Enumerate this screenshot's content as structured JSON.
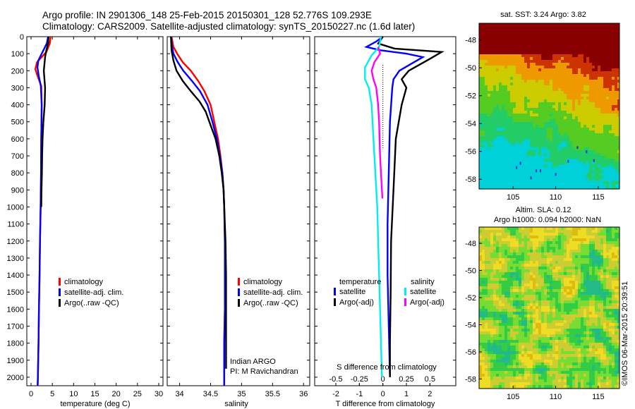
{
  "header": {
    "line1": "Argo profile: IN 2901306_148 25-Feb-2015 20150301_128 52.776S 109.293E",
    "line2": "Climatology: CARS2009. Satellite-adjusted climatology: synTS_20150227.nc (1.6d later)"
  },
  "chart_data": [
    {
      "type": "line",
      "name": "temperature-profile",
      "xlabel": "temperature (deg C)",
      "xlim": [
        -1,
        31
      ],
      "ylim": [
        2050,
        0
      ],
      "xticks": [
        "0",
        "5",
        "10",
        "15",
        "20",
        "25",
        "30"
      ],
      "xtick_values": [
        0,
        5,
        10,
        15,
        20,
        25,
        30
      ],
      "ytick_values": [
        0,
        100,
        200,
        300,
        400,
        500,
        600,
        700,
        800,
        900,
        1000,
        1100,
        1200,
        1300,
        1400,
        1500,
        1600,
        1700,
        1800,
        1900,
        2000
      ],
      "legend": [
        "climatology",
        "satellite-adj. clim.",
        "Argo(..raw -QC)"
      ],
      "series": [
        {
          "name": "climatology",
          "color": "#ff0000",
          "points": [
            [
              4.6,
              0
            ],
            [
              4.4,
              40
            ],
            [
              3.6,
              90
            ],
            [
              1.4,
              150
            ],
            [
              1.0,
              190
            ],
            [
              1.5,
              230
            ],
            [
              2.4,
              290
            ],
            [
              2.5,
              400
            ],
            [
              2.4,
              600
            ],
            [
              2.35,
              800
            ],
            [
              2.25,
              1000
            ],
            [
              2.1,
              1200
            ],
            [
              2.0,
              1400
            ],
            [
              1.85,
              1600
            ],
            [
              1.75,
              1800
            ],
            [
              1.6,
              2000
            ],
            [
              1.55,
              2050
            ]
          ]
        },
        {
          "name": "satellite-adj. clim.",
          "color": "#0000ff",
          "points": [
            [
              4.0,
              0
            ],
            [
              3.7,
              40
            ],
            [
              2.7,
              90
            ],
            [
              1.7,
              140
            ],
            [
              1.5,
              180
            ],
            [
              1.8,
              230
            ],
            [
              2.3,
              290
            ],
            [
              2.5,
              400
            ],
            [
              2.4,
              600
            ],
            [
              2.35,
              800
            ],
            [
              2.25,
              1000
            ],
            [
              2.1,
              1200
            ],
            [
              2.0,
              1400
            ],
            [
              1.85,
              1600
            ],
            [
              1.75,
              1800
            ],
            [
              1.6,
              2000
            ],
            [
              1.55,
              2050
            ]
          ]
        },
        {
          "name": "Argo(..raw -QC)",
          "color": "#000000",
          "points": [
            [
              4.1,
              0
            ],
            [
              4.0,
              40
            ],
            [
              3.6,
              80
            ],
            [
              3.3,
              120
            ],
            [
              3.0,
              200
            ],
            [
              3.3,
              300
            ],
            [
              3.2,
              400
            ],
            [
              2.9,
              500
            ],
            [
              2.7,
              600
            ],
            [
              2.6,
              700
            ],
            [
              2.55,
              800
            ],
            [
              2.45,
              900
            ],
            [
              2.4,
              1000
            ]
          ]
        }
      ]
    },
    {
      "type": "line",
      "name": "salinity-profile",
      "xlabel": "salinity",
      "xlim": [
        33.8,
        36.1
      ],
      "ylim": [
        2050,
        0
      ],
      "xticks": [
        "34",
        "34.5",
        "35",
        "35.5",
        "36"
      ],
      "xtick_values": [
        34,
        34.5,
        35,
        35.5,
        36
      ],
      "legend": [
        "climatology",
        "satellite-adj. clim.",
        "Argo(..raw -QC)"
      ],
      "annotation": [
        "Indian ARGO",
        "PI: M Ravichandran"
      ],
      "series": [
        {
          "name": "climatology",
          "color": "#ff0000",
          "points": [
            [
              33.87,
              0
            ],
            [
              33.9,
              60
            ],
            [
              33.96,
              100
            ],
            [
              34.05,
              150
            ],
            [
              34.18,
              200
            ],
            [
              34.3,
              260
            ],
            [
              34.4,
              320
            ],
            [
              34.5,
              400
            ],
            [
              34.56,
              500
            ],
            [
              34.62,
              600
            ],
            [
              34.66,
              700
            ],
            [
              34.69,
              800
            ],
            [
              34.71,
              900
            ],
            [
              34.72,
              1000
            ],
            [
              34.73,
              1200
            ],
            [
              34.73,
              1400
            ],
            [
              34.73,
              1600
            ],
            [
              34.72,
              1800
            ],
            [
              34.72,
              2050
            ]
          ]
        },
        {
          "name": "satellite-adj. clim.",
          "color": "#0000ff",
          "points": [
            [
              33.86,
              0
            ],
            [
              33.88,
              60
            ],
            [
              33.9,
              100
            ],
            [
              33.97,
              150
            ],
            [
              34.06,
              200
            ],
            [
              34.2,
              260
            ],
            [
              34.33,
              320
            ],
            [
              34.45,
              400
            ],
            [
              34.53,
              500
            ],
            [
              34.6,
              600
            ],
            [
              34.65,
              700
            ],
            [
              34.69,
              800
            ],
            [
              34.71,
              900
            ],
            [
              34.72,
              1000
            ],
            [
              34.73,
              1200
            ],
            [
              34.73,
              1400
            ],
            [
              34.73,
              1600
            ],
            [
              34.72,
              1800
            ],
            [
              34.72,
              2050
            ]
          ]
        },
        {
          "name": "Argo(..raw -QC)",
          "color": "#000000",
          "points": [
            [
              33.86,
              0
            ],
            [
              33.87,
              80
            ],
            [
              33.9,
              140
            ],
            [
              33.95,
              200
            ],
            [
              34.05,
              260
            ],
            [
              34.18,
              320
            ],
            [
              34.32,
              380
            ],
            [
              34.42,
              440
            ],
            [
              34.5,
              520
            ],
            [
              34.58,
              600
            ],
            [
              34.64,
              700
            ],
            [
              34.68,
              800
            ],
            [
              34.71,
              900
            ],
            [
              34.72,
              1000
            ],
            [
              34.74,
              1200
            ],
            [
              34.75,
              1400
            ],
            [
              34.75,
              1600
            ],
            [
              34.75,
              1800
            ],
            [
              34.75,
              1950
            ]
          ]
        }
      ]
    },
    {
      "type": "line",
      "name": "difference-profile",
      "xlabel": "T difference from climatology",
      "xlabel_top": "S difference from climatology",
      "xlim": [
        -2.9,
        3.1
      ],
      "ylim": [
        2050,
        0
      ],
      "xticks": [
        "-2",
        "-1",
        "0",
        "1",
        "2"
      ],
      "xtick_values": [
        -2,
        -1,
        0,
        1,
        2
      ],
      "xticks_top": [
        "-0.5",
        "-0.25",
        "0",
        "0.25",
        "0.5"
      ],
      "xtick_top_values": [
        -0.5,
        -0.25,
        0,
        0.25,
        0.5
      ],
      "legend_groups": {
        "temperature": [
          "satellite",
          "Argo(-adj)"
        ],
        "salinity": [
          "satellite",
          "Argo(-adj)"
        ]
      },
      "series": [
        {
          "name": "temperature satellite",
          "color": "#0000ff",
          "points": [
            [
              0.0,
              0
            ],
            [
              -0.3,
              30
            ],
            [
              -0.7,
              60
            ],
            [
              -0.1,
              80
            ],
            [
              1.0,
              100
            ],
            [
              1.7,
              120
            ],
            [
              1.2,
              160
            ],
            [
              0.7,
              200
            ],
            [
              0.45,
              250
            ],
            [
              0.4,
              300
            ],
            [
              0.3,
              500
            ],
            [
              0.25,
              800
            ],
            [
              0.2,
              1100
            ],
            [
              0.2,
              1400
            ],
            [
              0.25,
              1700
            ],
            [
              0.3,
              2000
            ]
          ]
        },
        {
          "name": "temperature Argo(-adj)",
          "color": "#000000",
          "points": [
            [
              0.0,
              0
            ],
            [
              -0.2,
              40
            ],
            [
              0.5,
              70
            ],
            [
              2.5,
              90
            ],
            [
              2.0,
              130
            ],
            [
              1.1,
              200
            ],
            [
              0.8,
              250
            ],
            [
              1.0,
              300
            ],
            [
              0.8,
              400
            ],
            [
              0.55,
              600
            ],
            [
              0.45,
              900
            ],
            [
              0.35,
              1200
            ],
            [
              0.33,
              1500
            ],
            [
              0.3,
              1800
            ],
            [
              0.3,
              2000
            ]
          ]
        },
        {
          "name": "salinity satellite",
          "color": "#00eeee",
          "points": [
            [
              -0.02,
              0
            ],
            [
              -0.04,
              60
            ],
            [
              -0.12,
              110
            ],
            [
              -0.19,
              180
            ],
            [
              -0.19,
              250
            ],
            [
              -0.15,
              300
            ],
            [
              -0.12,
              400
            ],
            [
              -0.1,
              600
            ],
            [
              -0.08,
              800
            ],
            [
              -0.06,
              1000
            ],
            [
              -0.05,
              1200
            ],
            [
              -0.04,
              1400
            ],
            [
              -0.03,
              1600
            ],
            [
              -0.02,
              1800
            ],
            [
              -0.01,
              2000
            ]
          ]
        },
        {
          "name": "salinity Argo(-adj)",
          "color": "#ff00ff",
          "points": [
            [
              -0.05,
              60
            ],
            [
              -0.03,
              100
            ],
            [
              -0.09,
              150
            ],
            [
              -0.12,
              200
            ],
            [
              -0.1,
              250
            ],
            [
              -0.07,
              300
            ],
            [
              -0.05,
              400
            ],
            [
              -0.04,
              500
            ],
            [
              -0.035,
              600
            ],
            [
              -0.03,
              700
            ],
            [
              -0.02,
              800
            ],
            [
              -0.01,
              900
            ],
            [
              -0.005,
              950
            ]
          ]
        }
      ]
    },
    {
      "type": "heatmap",
      "name": "sst-map",
      "title": "sat. SST: 3.24 Argo: 3.82",
      "xticks": [
        "105",
        "110",
        "115"
      ],
      "xtick_values": [
        105,
        110,
        115
      ],
      "yticks": [
        "-48",
        "-50",
        "-52",
        "-54",
        "-56",
        "-58"
      ],
      "ytick_values": [
        -48,
        -50,
        -52,
        -54,
        -56,
        -58
      ],
      "xlim": [
        101,
        117.5
      ],
      "ylim": [
        -58.7,
        -46.8
      ],
      "colors": [
        "#00d0d8",
        "#22cc66",
        "#55cc22",
        "#cccc00",
        "#ee9900",
        "#cc3300",
        "#880000"
      ]
    },
    {
      "type": "heatmap",
      "name": "sla-map",
      "title": "Altim. SLA: 0.12",
      "subtitle": "Argo h1000: 0.094 h2000: NaN",
      "xticks": [
        "105",
        "110",
        "115"
      ],
      "xtick_values": [
        105,
        110,
        115
      ],
      "yticks": [
        "-48",
        "-50",
        "-52",
        "-54",
        "-56",
        "-58"
      ],
      "ytick_values": [
        -48,
        -50,
        -52,
        -54,
        -56,
        -58
      ],
      "xlim": [
        101,
        117.5
      ],
      "ylim": [
        -58.7,
        -46.8
      ],
      "colors": [
        "#22bb88",
        "#33cc44",
        "#77dd33",
        "#cccc33",
        "#eedd22",
        "#ddbb11"
      ],
      "side_label": "©IMOS 06-Mar-2015 20:39:51"
    }
  ]
}
